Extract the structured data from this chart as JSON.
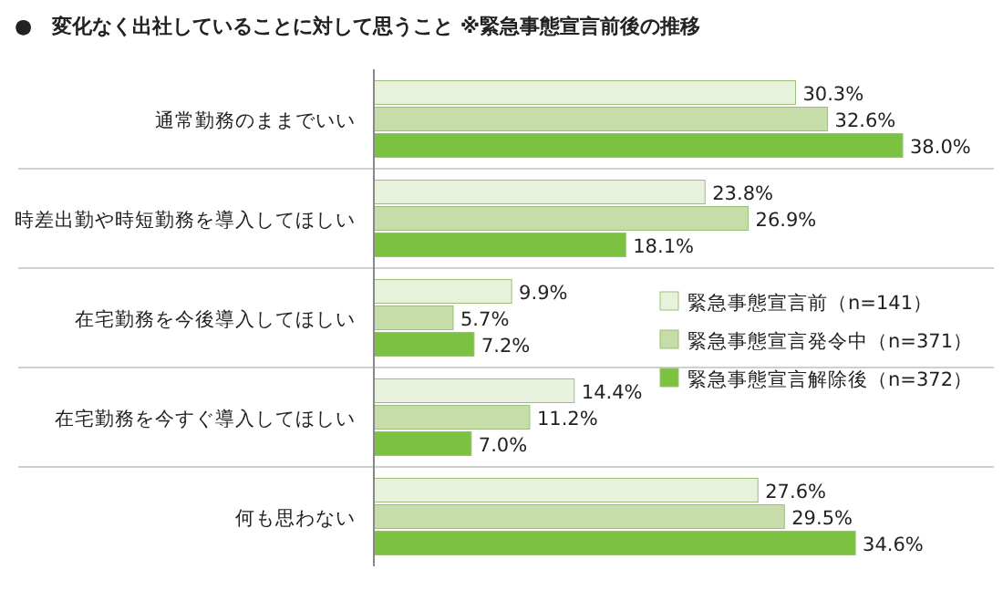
{
  "chart_data": {
    "type": "bar",
    "orientation": "horizontal",
    "title": "●　変化なく出社していることに対して思うこと ※緊急事態宣言前後の推移",
    "categories": [
      "通常勤務のままでいい",
      "時差出勤や時短勤務を導入してほしい",
      "在宅勤務を今後導入してほしい",
      "在宅勤務を今すぐ導入してほしい",
      "何も思わない"
    ],
    "series": [
      {
        "name": "緊急事態宣言前（n=141）",
        "color": "#e8f1dc",
        "values": [
          30.3,
          23.8,
          9.9,
          14.4,
          27.6
        ],
        "value_labels": [
          "30.3%",
          "23.8%",
          "9.9%",
          "14.4%",
          "27.6%"
        ]
      },
      {
        "name": "緊急事態宣言発令中（n=371）",
        "color": "#c6dca9",
        "values": [
          32.6,
          26.9,
          5.7,
          11.2,
          29.5
        ],
        "value_labels": [
          "32.6%",
          "26.9%",
          "5.7%",
          "11.2%",
          "29.5%"
        ]
      },
      {
        "name": "緊急事態宣言解除後（n=372）",
        "color": "#7cc242",
        "values": [
          38.0,
          18.1,
          7.2,
          7.0,
          34.6
        ],
        "value_labels": [
          "38.0%",
          "18.1%",
          "7.2%",
          "7.0%",
          "34.6%"
        ]
      }
    ],
    "grid": "y",
    "legend": "right"
  }
}
